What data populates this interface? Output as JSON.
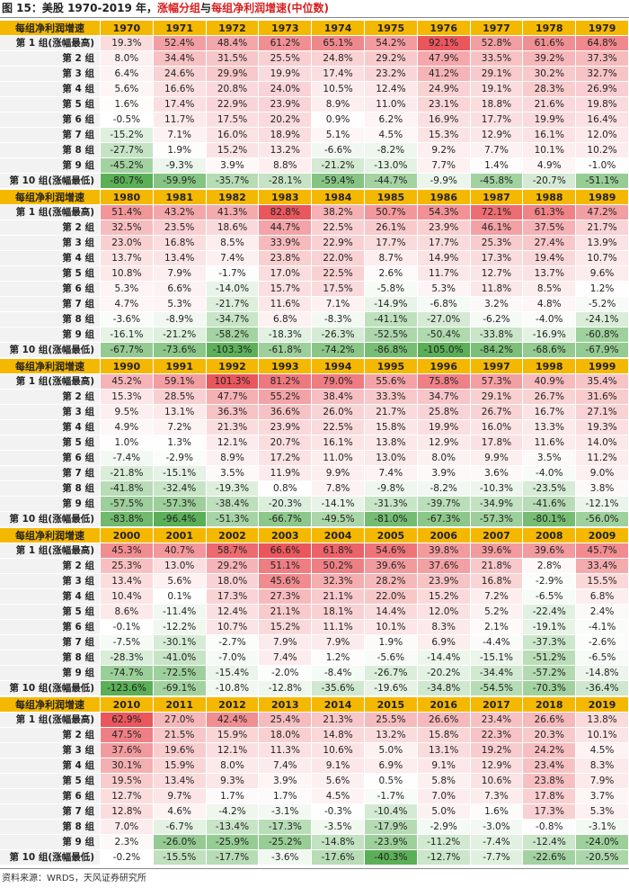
{
  "title": {
    "figure_label": "图 15：",
    "text_plain": "美股 1970-2019 年，",
    "text_red_1": "涨幅分组",
    "text_mid": "与",
    "text_red_2": "每组净利润增速(中位数)"
  },
  "source": "资料来源：WRDS，天风证券研究所",
  "colors": {
    "header": "#f5b800",
    "positive_max": "#e9575d",
    "negative_max": "#5aaf57",
    "label_bg": "#f2f2f2"
  },
  "header_label": "每组净利润增速",
  "row_labels": [
    "第 1 组(涨幅最高)",
    "第 2 组",
    "第 3 组",
    "第 4 组",
    "第 5 组",
    "第 6 组",
    "第 7 组",
    "第 8 组",
    "第 9 组",
    "第 10 组(涨幅最低)"
  ],
  "blocks": [
    {
      "years": [
        "1970",
        "1971",
        "1972",
        "1973",
        "1974",
        "1975",
        "1976",
        "1977",
        "1978",
        "1979"
      ],
      "rows": [
        [
          "19.3%",
          "52.4%",
          "48.4%",
          "61.2%",
          "65.1%",
          "54.2%",
          "92.1%",
          "52.8%",
          "61.6%",
          "64.8%"
        ],
        [
          "8.0%",
          "34.4%",
          "31.5%",
          "25.5%",
          "24.8%",
          "29.2%",
          "47.9%",
          "33.5%",
          "39.2%",
          "37.3%"
        ],
        [
          "6.4%",
          "24.6%",
          "29.9%",
          "19.9%",
          "17.4%",
          "23.2%",
          "41.2%",
          "29.1%",
          "30.2%",
          "32.7%"
        ],
        [
          "5.6%",
          "16.6%",
          "20.8%",
          "24.0%",
          "10.5%",
          "12.4%",
          "24.9%",
          "19.1%",
          "28.3%",
          "26.9%"
        ],
        [
          "1.6%",
          "17.4%",
          "22.9%",
          "23.9%",
          "8.9%",
          "11.0%",
          "23.1%",
          "18.8%",
          "21.6%",
          "19.8%"
        ],
        [
          "-0.5%",
          "11.7%",
          "17.5%",
          "20.2%",
          "0.9%",
          "6.2%",
          "16.9%",
          "17.7%",
          "19.9%",
          "16.4%"
        ],
        [
          "-15.2%",
          "7.1%",
          "16.0%",
          "18.9%",
          "5.1%",
          "4.5%",
          "15.3%",
          "12.9%",
          "16.1%",
          "12.0%"
        ],
        [
          "-27.7%",
          "1.9%",
          "15.2%",
          "13.2%",
          "-6.6%",
          "-8.2%",
          "9.2%",
          "7.7%",
          "10.1%",
          "10.2%"
        ],
        [
          "-45.2%",
          "-9.3%",
          "3.9%",
          "8.8%",
          "-21.2%",
          "-13.0%",
          "7.7%",
          "1.4%",
          "4.9%",
          "-1.0%"
        ],
        [
          "-80.7%",
          "-59.9%",
          "-35.7%",
          "-28.1%",
          "-59.4%",
          "-44.7%",
          "-9.9%",
          "-45.8%",
          "-20.7%",
          "-51.1%"
        ]
      ]
    },
    {
      "years": [
        "1980",
        "1981",
        "1982",
        "1983",
        "1984",
        "1985",
        "1986",
        "1987",
        "1988",
        "1989"
      ],
      "rows": [
        [
          "51.4%",
          "43.2%",
          "41.3%",
          "82.8%",
          "38.2%",
          "50.7%",
          "54.3%",
          "72.1%",
          "61.3%",
          "47.2%"
        ],
        [
          "32.5%",
          "23.5%",
          "18.6%",
          "44.7%",
          "22.5%",
          "26.1%",
          "23.9%",
          "46.1%",
          "37.5%",
          "21.7%"
        ],
        [
          "23.0%",
          "16.8%",
          "8.5%",
          "33.9%",
          "22.9%",
          "17.7%",
          "17.7%",
          "25.3%",
          "27.4%",
          "13.9%"
        ],
        [
          "13.7%",
          "13.4%",
          "7.4%",
          "23.8%",
          "22.0%",
          "8.7%",
          "14.9%",
          "17.3%",
          "19.4%",
          "10.7%"
        ],
        [
          "10.8%",
          "7.9%",
          "-1.7%",
          "17.0%",
          "22.5%",
          "2.6%",
          "11.7%",
          "12.7%",
          "13.7%",
          "9.6%"
        ],
        [
          "5.3%",
          "6.6%",
          "-14.0%",
          "15.7%",
          "17.5%",
          "-5.8%",
          "5.3%",
          "11.8%",
          "8.5%",
          "1.2%"
        ],
        [
          "4.7%",
          "5.3%",
          "-21.7%",
          "11.6%",
          "7.1%",
          "-14.9%",
          "-6.8%",
          "3.2%",
          "4.8%",
          "-5.2%"
        ],
        [
          "-3.6%",
          "-8.9%",
          "-34.7%",
          "6.8%",
          "-8.3%",
          "-41.1%",
          "-27.0%",
          "-6.2%",
          "-4.0%",
          "-24.1%"
        ],
        [
          "-16.1%",
          "-21.2%",
          "-58.2%",
          "-18.3%",
          "-26.3%",
          "-52.5%",
          "-50.4%",
          "-33.8%",
          "-16.9%",
          "-60.8%"
        ],
        [
          "-67.7%",
          "-73.6%",
          "-103.3%",
          "-61.8%",
          "-74.2%",
          "-86.8%",
          "-105.0%",
          "-84.2%",
          "-68.6%",
          "-67.9%"
        ]
      ]
    },
    {
      "years": [
        "1990",
        "1991",
        "1992",
        "1993",
        "1994",
        "1995",
        "1996",
        "1997",
        "1998",
        "1999"
      ],
      "rows": [
        [
          "45.2%",
          "59.1%",
          "101.3%",
          "81.2%",
          "79.0%",
          "55.6%",
          "75.8%",
          "57.3%",
          "40.9%",
          "35.4%"
        ],
        [
          "15.3%",
          "28.5%",
          "47.7%",
          "55.2%",
          "38.4%",
          "33.3%",
          "34.7%",
          "29.1%",
          "26.7%",
          "31.6%"
        ],
        [
          "9.5%",
          "13.1%",
          "36.3%",
          "36.6%",
          "26.0%",
          "21.7%",
          "25.8%",
          "26.7%",
          "16.7%",
          "27.1%"
        ],
        [
          "4.9%",
          "7.2%",
          "21.3%",
          "23.9%",
          "22.5%",
          "15.8%",
          "19.9%",
          "16.0%",
          "13.3%",
          "19.3%"
        ],
        [
          "1.0%",
          "1.3%",
          "12.1%",
          "20.7%",
          "16.1%",
          "13.8%",
          "12.9%",
          "17.8%",
          "11.6%",
          "14.0%"
        ],
        [
          "-7.4%",
          "-2.9%",
          "8.9%",
          "17.2%",
          "11.0%",
          "13.0%",
          "8.0%",
          "9.9%",
          "3.5%",
          "11.2%"
        ],
        [
          "-21.8%",
          "-15.1%",
          "3.5%",
          "11.9%",
          "9.9%",
          "7.4%",
          "3.9%",
          "3.6%",
          "-4.0%",
          "9.0%"
        ],
        [
          "-41.8%",
          "-32.4%",
          "-19.3%",
          "0.8%",
          "7.8%",
          "-9.8%",
          "-8.2%",
          "-10.3%",
          "-23.5%",
          "3.8%"
        ],
        [
          "-57.5%",
          "-57.3%",
          "-38.4%",
          "-20.3%",
          "-14.1%",
          "-31.3%",
          "-39.7%",
          "-34.9%",
          "-41.6%",
          "-12.1%"
        ],
        [
          "-83.8%",
          "-96.4%",
          "-51.3%",
          "-66.7%",
          "-49.5%",
          "-81.0%",
          "-67.3%",
          "-57.3%",
          "-80.1%",
          "-56.0%"
        ]
      ]
    },
    {
      "years": [
        "2000",
        "2001",
        "2002",
        "2003",
        "2004",
        "2005",
        "2006",
        "2007",
        "2008",
        "2009"
      ],
      "rows": [
        [
          "45.3%",
          "40.7%",
          "58.7%",
          "66.6%",
          "61.8%",
          "54.6%",
          "39.8%",
          "39.6%",
          "39.6%",
          "45.7%"
        ],
        [
          "25.3%",
          "13.0%",
          "29.2%",
          "51.1%",
          "50.2%",
          "39.6%",
          "37.6%",
          "21.8%",
          "2.8%",
          "33.4%"
        ],
        [
          "13.4%",
          "5.6%",
          "18.0%",
          "45.6%",
          "32.3%",
          "28.2%",
          "23.9%",
          "16.8%",
          "-2.9%",
          "15.5%"
        ],
        [
          "10.4%",
          "0.1%",
          "17.3%",
          "27.3%",
          "21.1%",
          "22.0%",
          "15.2%",
          "7.2%",
          "-6.5%",
          "6.8%"
        ],
        [
          "8.6%",
          "-11.4%",
          "12.4%",
          "21.1%",
          "18.1%",
          "14.4%",
          "12.0%",
          "5.2%",
          "-22.4%",
          "2.4%"
        ],
        [
          "-0.1%",
          "-12.2%",
          "10.7%",
          "15.2%",
          "11.1%",
          "10.1%",
          "8.3%",
          "2.1%",
          "-19.1%",
          "-4.1%"
        ],
        [
          "-7.5%",
          "-30.1%",
          "-2.7%",
          "7.9%",
          "7.9%",
          "1.9%",
          "6.9%",
          "-4.4%",
          "-37.3%",
          "-2.6%"
        ],
        [
          "-28.3%",
          "-41.0%",
          "-7.0%",
          "7.4%",
          "1.2%",
          "-5.6%",
          "-14.4%",
          "-15.1%",
          "-51.2%",
          "-6.5%"
        ],
        [
          "-74.7%",
          "-72.5%",
          "-15.4%",
          "-2.0%",
          "-8.4%",
          "-26.7%",
          "-20.2%",
          "-34.4%",
          "-57.2%",
          "-14.8%"
        ],
        [
          "-123.6%",
          "-69.1%",
          "-10.8%",
          "-12.8%",
          "-35.6%",
          "-19.6%",
          "-34.8%",
          "-54.5%",
          "-70.3%",
          "-36.4%"
        ]
      ]
    },
    {
      "years": [
        "2010",
        "2011",
        "2012",
        "2013",
        "2014",
        "2015",
        "2016",
        "2017",
        "2018",
        "2019"
      ],
      "rows": [
        [
          "62.9%",
          "27.0%",
          "42.4%",
          "25.4%",
          "21.3%",
          "25.5%",
          "26.6%",
          "23.4%",
          "26.6%",
          "13.8%"
        ],
        [
          "47.5%",
          "21.5%",
          "15.9%",
          "18.0%",
          "14.8%",
          "13.2%",
          "15.8%",
          "22.3%",
          "20.3%",
          "10.1%"
        ],
        [
          "37.6%",
          "19.6%",
          "12.1%",
          "11.3%",
          "10.6%",
          "5.0%",
          "13.1%",
          "19.2%",
          "24.2%",
          "4.5%"
        ],
        [
          "30.1%",
          "15.9%",
          "8.0%",
          "7.4%",
          "9.1%",
          "6.9%",
          "9.1%",
          "12.9%",
          "23.4%",
          "8.3%"
        ],
        [
          "19.5%",
          "13.4%",
          "9.3%",
          "3.9%",
          "5.6%",
          "0.5%",
          "5.8%",
          "10.6%",
          "23.8%",
          "7.9%"
        ],
        [
          "12.7%",
          "9.7%",
          "1.7%",
          "1.7%",
          "4.5%",
          "-1.7%",
          "7.0%",
          "7.3%",
          "17.8%",
          "3.7%"
        ],
        [
          "12.8%",
          "4.6%",
          "-4.2%",
          "-3.1%",
          "-0.3%",
          "-10.4%",
          "5.0%",
          "1.6%",
          "17.3%",
          "5.3%"
        ],
        [
          "7.0%",
          "-6.7%",
          "-13.4%",
          "-17.3%",
          "-3.5%",
          "-17.9%",
          "-2.9%",
          "-3.0%",
          "-0.8%",
          "-3.1%"
        ],
        [
          "2.3%",
          "-26.0%",
          "-25.9%",
          "-25.2%",
          "-14.8%",
          "-23.9%",
          "-11.2%",
          "-7.4%",
          "-12.4%",
          "-24.0%"
        ],
        [
          "-0.2%",
          "-15.5%",
          "-17.7%",
          "-3.6%",
          "-17.6%",
          "-40.3%",
          "-12.7%",
          "-7.7%",
          "-22.6%",
          "-20.5%"
        ]
      ]
    }
  ]
}
